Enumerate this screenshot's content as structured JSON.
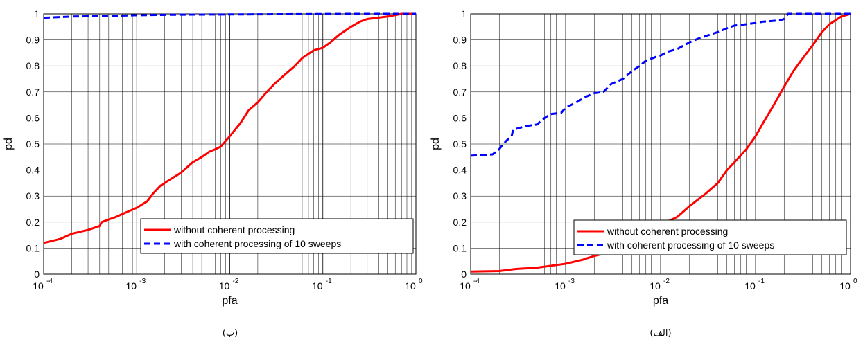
{
  "chart_data": [
    {
      "type": "line",
      "caption": "(ب)",
      "xlabel": "pfa",
      "ylabel": "pd",
      "xscale": "log",
      "xlim": [
        0.0001,
        1
      ],
      "ylim": [
        0,
        1
      ],
      "grid": true,
      "legend_position": "bottom-right",
      "xticks": [
        {
          "base": "10",
          "exp": "-4"
        },
        {
          "base": "10",
          "exp": "-3"
        },
        {
          "base": "10",
          "exp": "-2"
        },
        {
          "base": "10",
          "exp": "-1"
        },
        {
          "base": "10",
          "exp": "0"
        }
      ],
      "yticks": [
        "0",
        "0.1",
        "0.2",
        "0.3",
        "0.4",
        "0.5",
        "0.6",
        "0.7",
        "0.8",
        "0.9",
        "1"
      ],
      "series": [
        {
          "name": "without coherent processing",
          "color": "#ff0000",
          "style": "solid",
          "points": [
            [
              0.0001,
              0.12
            ],
            [
              0.00015,
              0.135
            ],
            [
              0.0002,
              0.155
            ],
            [
              0.0003,
              0.17
            ],
            [
              0.0004,
              0.185
            ],
            [
              0.00042,
              0.2
            ],
            [
              0.0005,
              0.21
            ],
            [
              0.0006,
              0.22
            ],
            [
              0.0008,
              0.24
            ],
            [
              0.001,
              0.255
            ],
            [
              0.0013,
              0.28
            ],
            [
              0.0015,
              0.31
            ],
            [
              0.0018,
              0.34
            ],
            [
              0.0022,
              0.36
            ],
            [
              0.003,
              0.39
            ],
            [
              0.004,
              0.43
            ],
            [
              0.005,
              0.45
            ],
            [
              0.006,
              0.47
            ],
            [
              0.007,
              0.48
            ],
            [
              0.008,
              0.49
            ],
            [
              0.01,
              0.53
            ],
            [
              0.013,
              0.58
            ],
            [
              0.016,
              0.63
            ],
            [
              0.02,
              0.66
            ],
            [
              0.025,
              0.7
            ],
            [
              0.03,
              0.73
            ],
            [
              0.04,
              0.77
            ],
            [
              0.05,
              0.8
            ],
            [
              0.06,
              0.83
            ],
            [
              0.08,
              0.86
            ],
            [
              0.1,
              0.87
            ],
            [
              0.12,
              0.89
            ],
            [
              0.15,
              0.92
            ],
            [
              0.2,
              0.95
            ],
            [
              0.25,
              0.97
            ],
            [
              0.3,
              0.98
            ],
            [
              0.5,
              0.99
            ],
            [
              0.7,
              1.0
            ],
            [
              1,
              1.0
            ]
          ]
        },
        {
          "name": "with coherent processing of 10 sweeps",
          "color": "#0000ff",
          "style": "dashed",
          "points": [
            [
              0.0001,
              0.985
            ],
            [
              0.0002,
              0.99
            ],
            [
              0.0005,
              0.992
            ],
            [
              0.001,
              0.995
            ],
            [
              0.003,
              0.997
            ],
            [
              0.01,
              0.998
            ],
            [
              0.05,
              0.999
            ],
            [
              0.2,
              1.0
            ],
            [
              1,
              1.0
            ]
          ]
        }
      ]
    },
    {
      "type": "line",
      "caption": "(الف)",
      "xlabel": "pfa",
      "ylabel": "pd",
      "xscale": "log",
      "xlim": [
        0.0001,
        1
      ],
      "ylim": [
        0,
        1
      ],
      "grid": true,
      "legend_position": "bottom-right",
      "xticks": [
        {
          "base": "10",
          "exp": "-4"
        },
        {
          "base": "10",
          "exp": "-3"
        },
        {
          "base": "10",
          "exp": "-2"
        },
        {
          "base": "10",
          "exp": "-1"
        },
        {
          "base": "10",
          "exp": "0"
        }
      ],
      "yticks": [
        "0",
        "0.1",
        "0.2",
        "0.3",
        "0.4",
        "0.5",
        "0.6",
        "0.7",
        "0.8",
        "0.9",
        "1"
      ],
      "series": [
        {
          "name": "without coherent processing",
          "color": "#ff0000",
          "style": "solid",
          "points": [
            [
              0.0001,
              0.01
            ],
            [
              0.0002,
              0.012
            ],
            [
              0.0003,
              0.02
            ],
            [
              0.0005,
              0.025
            ],
            [
              0.0008,
              0.035
            ],
            [
              0.001,
              0.04
            ],
            [
              0.0015,
              0.055
            ],
            [
              0.002,
              0.07
            ],
            [
              0.003,
              0.085
            ],
            [
              0.005,
              0.12
            ],
            [
              0.008,
              0.16
            ],
            [
              0.01,
              0.19
            ],
            [
              0.015,
              0.22
            ],
            [
              0.02,
              0.26
            ],
            [
              0.03,
              0.31
            ],
            [
              0.04,
              0.35
            ],
            [
              0.05,
              0.4
            ],
            [
              0.06,
              0.43
            ],
            [
              0.08,
              0.48
            ],
            [
              0.1,
              0.53
            ],
            [
              0.12,
              0.58
            ],
            [
              0.15,
              0.64
            ],
            [
              0.2,
              0.72
            ],
            [
              0.25,
              0.78
            ],
            [
              0.3,
              0.82
            ],
            [
              0.4,
              0.88
            ],
            [
              0.5,
              0.93
            ],
            [
              0.6,
              0.96
            ],
            [
              0.8,
              0.99
            ],
            [
              1,
              1.0
            ]
          ]
        },
        {
          "name": "with coherent processing of 10 sweeps",
          "color": "#0000ff",
          "style": "dashed",
          "points": [
            [
              0.0001,
              0.455
            ],
            [
              0.00017,
              0.46
            ],
            [
              0.0002,
              0.48
            ],
            [
              0.00022,
              0.5
            ],
            [
              0.00025,
              0.52
            ],
            [
              0.00027,
              0.53
            ],
            [
              0.00028,
              0.555
            ],
            [
              0.00035,
              0.565
            ],
            [
              0.0004,
              0.57
            ],
            [
              0.0005,
              0.575
            ],
            [
              0.0006,
              0.6
            ],
            [
              0.0007,
              0.615
            ],
            [
              0.0009,
              0.62
            ],
            [
              0.001,
              0.64
            ],
            [
              0.0013,
              0.66
            ],
            [
              0.0016,
              0.68
            ],
            [
              0.002,
              0.695
            ],
            [
              0.0025,
              0.7
            ],
            [
              0.003,
              0.73
            ],
            [
              0.004,
              0.75
            ],
            [
              0.005,
              0.78
            ],
            [
              0.006,
              0.8
            ],
            [
              0.007,
              0.82
            ],
            [
              0.009,
              0.835
            ],
            [
              0.01,
              0.84
            ],
            [
              0.012,
              0.855
            ],
            [
              0.015,
              0.865
            ],
            [
              0.02,
              0.89
            ],
            [
              0.025,
              0.905
            ],
            [
              0.03,
              0.915
            ],
            [
              0.04,
              0.93
            ],
            [
              0.05,
              0.945
            ],
            [
              0.06,
              0.955
            ],
            [
              0.08,
              0.96
            ],
            [
              0.1,
              0.965
            ],
            [
              0.12,
              0.97
            ],
            [
              0.18,
              0.975
            ],
            [
              0.2,
              0.98
            ],
            [
              0.22,
              1.0
            ],
            [
              1,
              1.0
            ]
          ]
        }
      ]
    }
  ]
}
